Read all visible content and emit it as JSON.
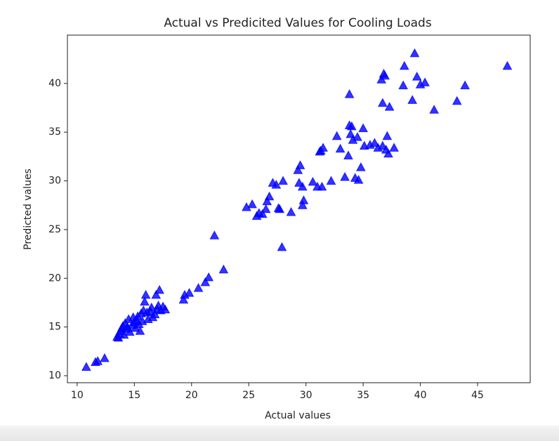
{
  "chart_data": {
    "type": "scatter",
    "title": "Actual vs Predicited Values for Cooling Loads",
    "xlabel": "Actual values",
    "ylabel": "Predicted values",
    "color": "#0000ff",
    "marker": "triangle",
    "x": [
      10.8,
      11.6,
      11.8,
      12.4,
      13.5,
      13.7,
      13.8,
      13.9,
      14.0,
      14.1,
      14.2,
      14.3,
      14.5,
      14.6,
      14.8,
      14.9,
      15.0,
      15.1,
      15.3,
      15.4,
      15.5,
      15.6,
      15.7,
      15.9,
      16.0,
      16.1,
      16.2,
      16.4,
      16.6,
      16.8,
      16.9,
      17.0,
      17.1,
      17.2,
      17.3,
      17.5,
      17.7,
      13.6,
      14.4,
      15.2,
      15.8,
      16.5,
      19.3,
      19.4,
      19.8,
      20.6,
      21.2,
      21.5,
      22.0,
      22.8,
      24.8,
      25.3,
      25.7,
      25.9,
      26.2,
      26.5,
      26.6,
      26.8,
      27.1,
      27.4,
      27.7,
      27.9,
      28.0,
      27.6,
      28.7,
      29.3,
      29.5,
      29.4,
      29.7,
      29.7,
      29.8,
      30.6,
      31.0,
      31.3,
      31.2,
      31.5,
      31.4,
      32.2,
      32.7,
      33.0,
      33.4,
      33.7,
      33.8,
      33.8,
      34.0,
      33.9,
      34.1,
      34.3,
      34.6,
      34.5,
      34.8,
      35.0,
      35.1,
      35.6,
      36.0,
      36.3,
      36.7,
      37.0,
      37.1,
      37.2,
      37.7,
      36.7,
      37.3,
      36.6,
      36.8,
      36.9,
      38.5,
      38.6,
      39.3,
      39.5,
      39.7,
      40.0,
      40.4,
      41.2,
      43.2,
      43.9,
      47.6
    ],
    "values": [
      10.9,
      11.4,
      11.5,
      11.8,
      14.0,
      14.3,
      14.6,
      14.9,
      15.1,
      14.2,
      15.4,
      14.8,
      15.8,
      14.5,
      15.2,
      16.0,
      15.5,
      14.9,
      16.1,
      15.3,
      14.6,
      16.4,
      15.6,
      17.6,
      18.3,
      16.5,
      15.8,
      16.6,
      16.0,
      16.3,
      18.3,
      16.8,
      17.2,
      18.8,
      16.7,
      17.1,
      16.8,
      13.9,
      15.0,
      15.7,
      16.7,
      17.0,
      17.8,
      18.3,
      18.5,
      19.0,
      19.6,
      20.1,
      24.4,
      20.9,
      27.3,
      27.6,
      26.4,
      26.7,
      26.6,
      27.1,
      27.9,
      28.4,
      29.8,
      29.6,
      27.1,
      23.2,
      30.0,
      27.2,
      26.8,
      31.1,
      31.6,
      29.8,
      29.4,
      27.5,
      28.0,
      29.9,
      29.4,
      33.1,
      33.0,
      33.4,
      29.4,
      30.0,
      34.6,
      33.3,
      30.4,
      32.6,
      38.9,
      35.7,
      35.6,
      34.8,
      34.2,
      30.3,
      30.1,
      34.5,
      31.4,
      35.4,
      33.6,
      33.7,
      33.9,
      33.4,
      33.6,
      33.2,
      34.6,
      32.8,
      33.4,
      38.0,
      37.6,
      40.4,
      41.0,
      40.8,
      39.8,
      41.8,
      38.3,
      43.1,
      40.7,
      39.9,
      40.1,
      37.3,
      38.2,
      39.8,
      41.8
    ],
    "xlim": [
      9.15,
      49.6
    ],
    "ylim": [
      9.28,
      44.96
    ],
    "xticks": [
      10,
      15,
      20,
      25,
      30,
      35,
      40,
      45
    ],
    "yticks": [
      10,
      15,
      20,
      25,
      30,
      35,
      40
    ]
  }
}
